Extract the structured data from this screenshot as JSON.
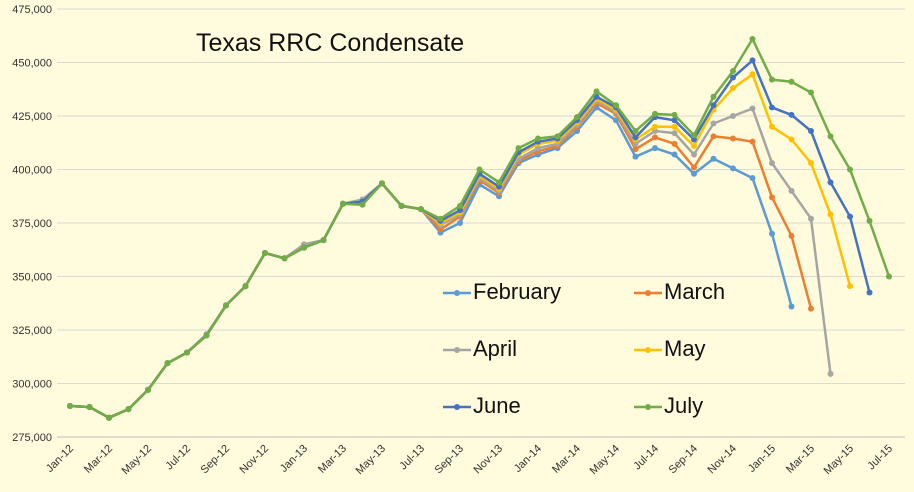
{
  "chart_data": {
    "type": "line",
    "title": "Texas RRC Condensate",
    "categories": [
      "Jan-12",
      null,
      "Mar-12",
      null,
      "May-12",
      null,
      "Jul-12",
      null,
      "Sep-12",
      null,
      "Nov-12",
      null,
      "Jan-13",
      null,
      "Mar-13",
      null,
      "May-13",
      null,
      "Jul-13",
      null,
      "Sep-13",
      null,
      "Nov-13",
      null,
      "Jan-14",
      null,
      "Mar-14",
      null,
      "May-14",
      null,
      "Jul-14",
      null,
      "Sep-14",
      null,
      "Nov-14",
      null,
      "Jan-15",
      null,
      "Mar-15",
      null,
      "May-15",
      null,
      "Jul-15"
    ],
    "ylim": [
      275000,
      475000
    ],
    "yticks": [
      {
        "value": 275000,
        "label": "275,000"
      },
      {
        "value": 300000,
        "label": "300,000"
      },
      {
        "value": 325000,
        "label": "325,000"
      },
      {
        "value": 350000,
        "label": "350,000"
      },
      {
        "value": 375000,
        "label": "375,000"
      },
      {
        "value": 400000,
        "label": "400,000"
      },
      {
        "value": 425000,
        "label": "425,000"
      },
      {
        "value": 450000,
        "label": "450,000"
      },
      {
        "value": 475000,
        "label": "475,000"
      }
    ],
    "grid": true,
    "series": [
      {
        "name": "February",
        "color": "#5b9bd5",
        "values": [
          289500,
          289000,
          284000,
          288000,
          297000,
          309500,
          314500,
          322500,
          336500,
          345500,
          361000,
          358500,
          363500,
          367000,
          384000,
          385000,
          393500,
          383000,
          381500,
          370500,
          375000,
          393000,
          387500,
          403000,
          407000,
          410000,
          418000,
          429000,
          423000,
          406000,
          410000,
          407000,
          398000,
          405000,
          400500,
          396000,
          370000,
          336000,
          null,
          null,
          null,
          null,
          null
        ]
      },
      {
        "name": "March",
        "color": "#ed7d31",
        "values": [
          289500,
          289000,
          284000,
          288000,
          297000,
          309500,
          314500,
          322500,
          336500,
          345500,
          361000,
          358500,
          363500,
          367000,
          384000,
          385000,
          393500,
          383000,
          381500,
          372000,
          378000,
          395000,
          389000,
          404000,
          408500,
          411000,
          420000,
          431000,
          426000,
          409500,
          415000,
          412000,
          401000,
          415500,
          414500,
          413000,
          387000,
          369000,
          335000,
          null,
          null,
          null,
          null
        ]
      },
      {
        "name": "April",
        "color": "#a5a5a5",
        "values": [
          289500,
          289000,
          284000,
          288000,
          297000,
          309500,
          314500,
          323000,
          336500,
          345500,
          361000,
          358500,
          365000,
          367000,
          384000,
          386000,
          393500,
          383000,
          381500,
          374000,
          379000,
          396000,
          390000,
          405000,
          410000,
          412000,
          421000,
          432000,
          427000,
          412000,
          418000,
          417000,
          407000,
          421500,
          425000,
          428500,
          403000,
          390000,
          377000,
          304500,
          null,
          null,
          null
        ]
      },
      {
        "name": "May",
        "color": "#ffc000",
        "values": [
          289500,
          289000,
          284000,
          288000,
          297000,
          309500,
          314500,
          322500,
          336500,
          345500,
          361000,
          358500,
          363500,
          367000,
          384000,
          385000,
          393500,
          383000,
          381500,
          375000,
          380000,
          397000,
          391000,
          407000,
          412000,
          413500,
          422000,
          433000,
          428000,
          414000,
          420000,
          420000,
          411000,
          428000,
          438000,
          444500,
          420000,
          414000,
          403000,
          379000,
          345500,
          null,
          null
        ]
      },
      {
        "name": "June",
        "color": "#4472c4",
        "values": [
          289500,
          289000,
          284000,
          288000,
          297000,
          309500,
          314500,
          322500,
          336500,
          345500,
          361000,
          358500,
          363500,
          367000,
          384000,
          385000,
          393500,
          383000,
          381500,
          376000,
          381000,
          398000,
          392000,
          408000,
          413000,
          414500,
          423000,
          434000,
          429000,
          415000,
          424500,
          423000,
          414000,
          430000,
          443000,
          451000,
          429000,
          425500,
          418000,
          394000,
          378000,
          342500,
          null
        ]
      },
      {
        "name": "July",
        "color": "#70ad47",
        "values": [
          289500,
          289000,
          284000,
          288000,
          297000,
          309500,
          314500,
          322500,
          336500,
          345500,
          361000,
          358500,
          363500,
          367000,
          384000,
          383500,
          393500,
          383000,
          381500,
          377000,
          383000,
          400000,
          394000,
          410000,
          414500,
          415500,
          424500,
          436500,
          430000,
          418000,
          426000,
          425500,
          416000,
          434000,
          446000,
          461000,
          442000,
          441000,
          436000,
          415500,
          400000,
          376000,
          350000
        ]
      }
    ]
  }
}
